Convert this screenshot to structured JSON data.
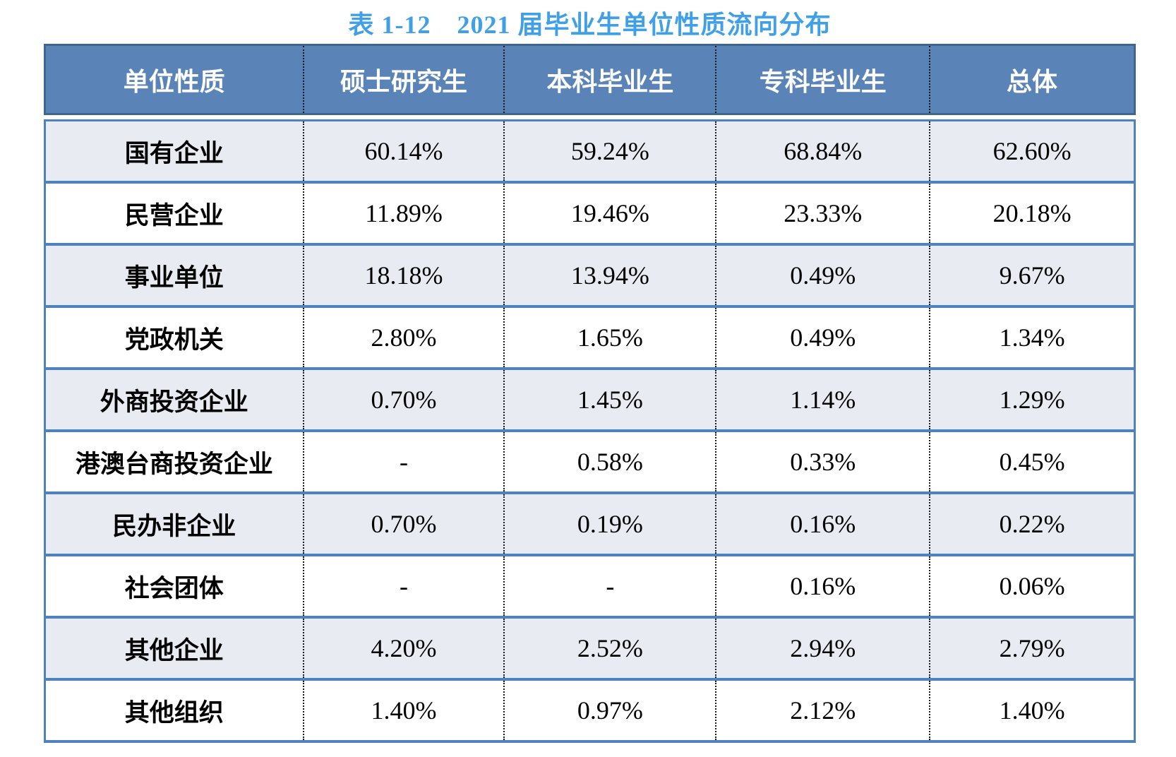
{
  "title": {
    "text": "表 1-12　2021 届毕业生单位性质流向分布",
    "color": "#3FA0E8"
  },
  "table": {
    "headers": [
      "单位性质",
      "硕士研究生",
      "本科毕业生",
      "专科毕业生",
      "总体"
    ],
    "rows": [
      {
        "label": "国有企业",
        "values": [
          "60.14%",
          "59.24%",
          "68.84%",
          "62.60%"
        ]
      },
      {
        "label": "民营企业",
        "values": [
          "11.89%",
          "19.46%",
          "23.33%",
          "20.18%"
        ]
      },
      {
        "label": "事业单位",
        "values": [
          "18.18%",
          "13.94%",
          "0.49%",
          "9.67%"
        ]
      },
      {
        "label": "党政机关",
        "values": [
          "2.80%",
          "1.65%",
          "0.49%",
          "1.34%"
        ]
      },
      {
        "label": "外商投资企业",
        "values": [
          "0.70%",
          "1.45%",
          "1.14%",
          "1.29%"
        ]
      },
      {
        "label": "港澳台商投资企业",
        "values": [
          "-",
          "0.58%",
          "0.33%",
          "0.45%"
        ]
      },
      {
        "label": "民办非企业",
        "values": [
          "0.70%",
          "0.19%",
          "0.16%",
          "0.22%"
        ]
      },
      {
        "label": "社会团体",
        "values": [
          "-",
          "-",
          "0.16%",
          "0.06%"
        ]
      },
      {
        "label": "其他企业",
        "values": [
          "4.20%",
          "2.52%",
          "2.94%",
          "2.79%"
        ]
      },
      {
        "label": "其他组织",
        "values": [
          "1.40%",
          "0.97%",
          "2.12%",
          "1.40%"
        ]
      }
    ],
    "colors": {
      "title_text": "#3FA0E8",
      "header_bg": "#5A84B8",
      "header_text": "#FFFFFF",
      "header_edge": "#41658F",
      "row_stripe_bg": "#E9EBF3",
      "row_alt_bg": "#FFFFFF",
      "row_divider": "#4F81BD",
      "column_divider": "#1A1A1A",
      "body_text": "#000000"
    }
  }
}
